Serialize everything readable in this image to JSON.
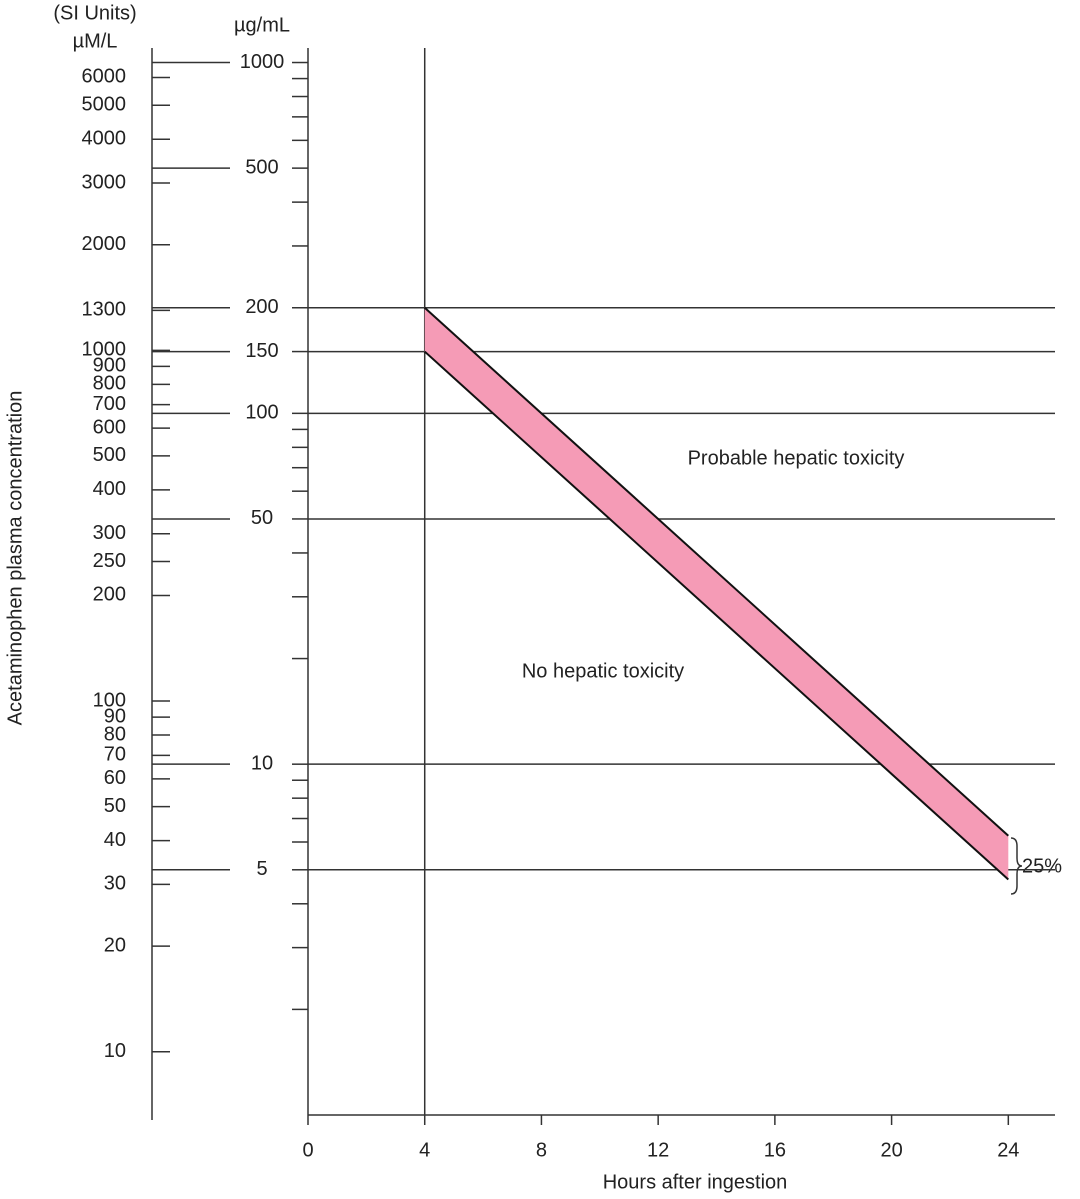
{
  "chart_data": {
    "type": "band",
    "ylabel": "Acetaminophen plasma concentration",
    "xlabel": "Hours after ingestion",
    "yunit": "µg/mL",
    "y2label": "(SI Units)",
    "y2unit": "µM/L",
    "xlim": [
      0,
      25.6
    ],
    "xticks": [
      0,
      4,
      8,
      12,
      16,
      20,
      24
    ],
    "ylim": [
      1,
      1100
    ],
    "log_y": true,
    "yticks": [
      1000,
      500,
      200,
      150,
      100,
      50,
      10,
      5
    ],
    "yminorticks": [
      900,
      800,
      700,
      600,
      400,
      300,
      90,
      80,
      70,
      60,
      40,
      30,
      20,
      9,
      8,
      7,
      6,
      4,
      3,
      2
    ],
    "y2lim": [
      6.6,
      7280
    ],
    "y2ticks": [
      6000,
      5000,
      4000,
      3000,
      2000,
      1300,
      1000,
      900,
      800,
      700,
      600,
      500,
      400,
      300,
      250,
      200,
      100,
      90,
      80,
      70,
      60,
      50,
      40,
      30,
      20,
      10
    ],
    "vline": 4,
    "band": {
      "color": "#f59bb6",
      "x": [
        4,
        24
      ],
      "upper": [
        200,
        6.25
      ],
      "lower": [
        150,
        4.69
      ]
    },
    "annotations": [
      "Probable hepatic toxicity",
      "No hepatic toxicity",
      "25%"
    ]
  }
}
